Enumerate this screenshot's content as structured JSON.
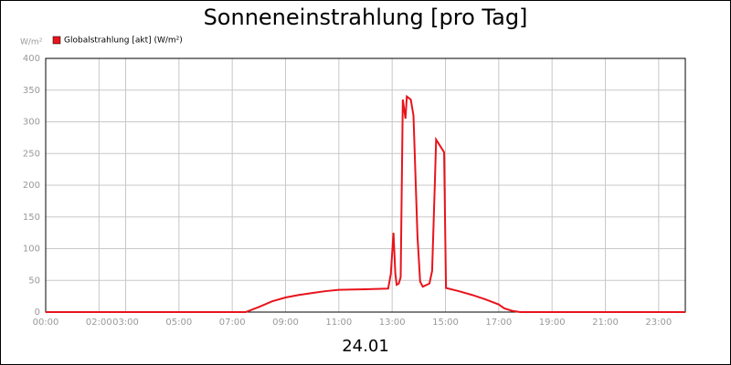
{
  "chart_data": {
    "type": "line",
    "title": "Sonneneinstrahlung [pro Tag]",
    "y_unit": "W/m²",
    "x_label": "24.01",
    "xlim": [
      0,
      24
    ],
    "xticks": [
      {
        "value": 0,
        "label": "00:00"
      },
      {
        "value": 2,
        "label": "02:00"
      },
      {
        "value": 3,
        "label": "03:00"
      },
      {
        "value": 5,
        "label": "05:00"
      },
      {
        "value": 7,
        "label": "07:00"
      },
      {
        "value": 9,
        "label": "09:00"
      },
      {
        "value": 11,
        "label": "11:00"
      },
      {
        "value": 13,
        "label": "13:00"
      },
      {
        "value": 15,
        "label": "15:00"
      },
      {
        "value": 17,
        "label": "17:00"
      },
      {
        "value": 19,
        "label": "19:00"
      },
      {
        "value": 21,
        "label": "21:00"
      },
      {
        "value": 23,
        "label": "23:00"
      }
    ],
    "ylim": [
      0,
      400
    ],
    "yticks": [
      0,
      50,
      100,
      150,
      200,
      250,
      300,
      350,
      400
    ],
    "grid": true,
    "x": [
      0,
      7.5,
      8,
      8.5,
      9,
      9.5,
      10,
      10.5,
      11,
      12,
      12.85,
      12.95,
      13.05,
      13.12,
      13.17,
      13.25,
      13.32,
      13.4,
      13.5,
      13.55,
      13.7,
      13.8,
      13.95,
      14.05,
      14.15,
      14.4,
      14.5,
      14.6,
      14.65,
      14.8,
      14.95,
      15.02,
      15.5,
      16,
      16.5,
      17,
      17.2,
      17.5,
      17.8,
      24
    ],
    "series": [
      {
        "name": "Globalstrahlung [akt] (W/m²)",
        "color": "#e8141c",
        "values": [
          0,
          0,
          8,
          17,
          23,
          27,
          30,
          33,
          35,
          36,
          37,
          60,
          125,
          60,
          43,
          45,
          55,
          335,
          305,
          340,
          335,
          310,
          120,
          48,
          40,
          45,
          65,
          200,
          272,
          262,
          252,
          38,
          33,
          27,
          20,
          12,
          6,
          2,
          0,
          0
        ]
      }
    ]
  }
}
